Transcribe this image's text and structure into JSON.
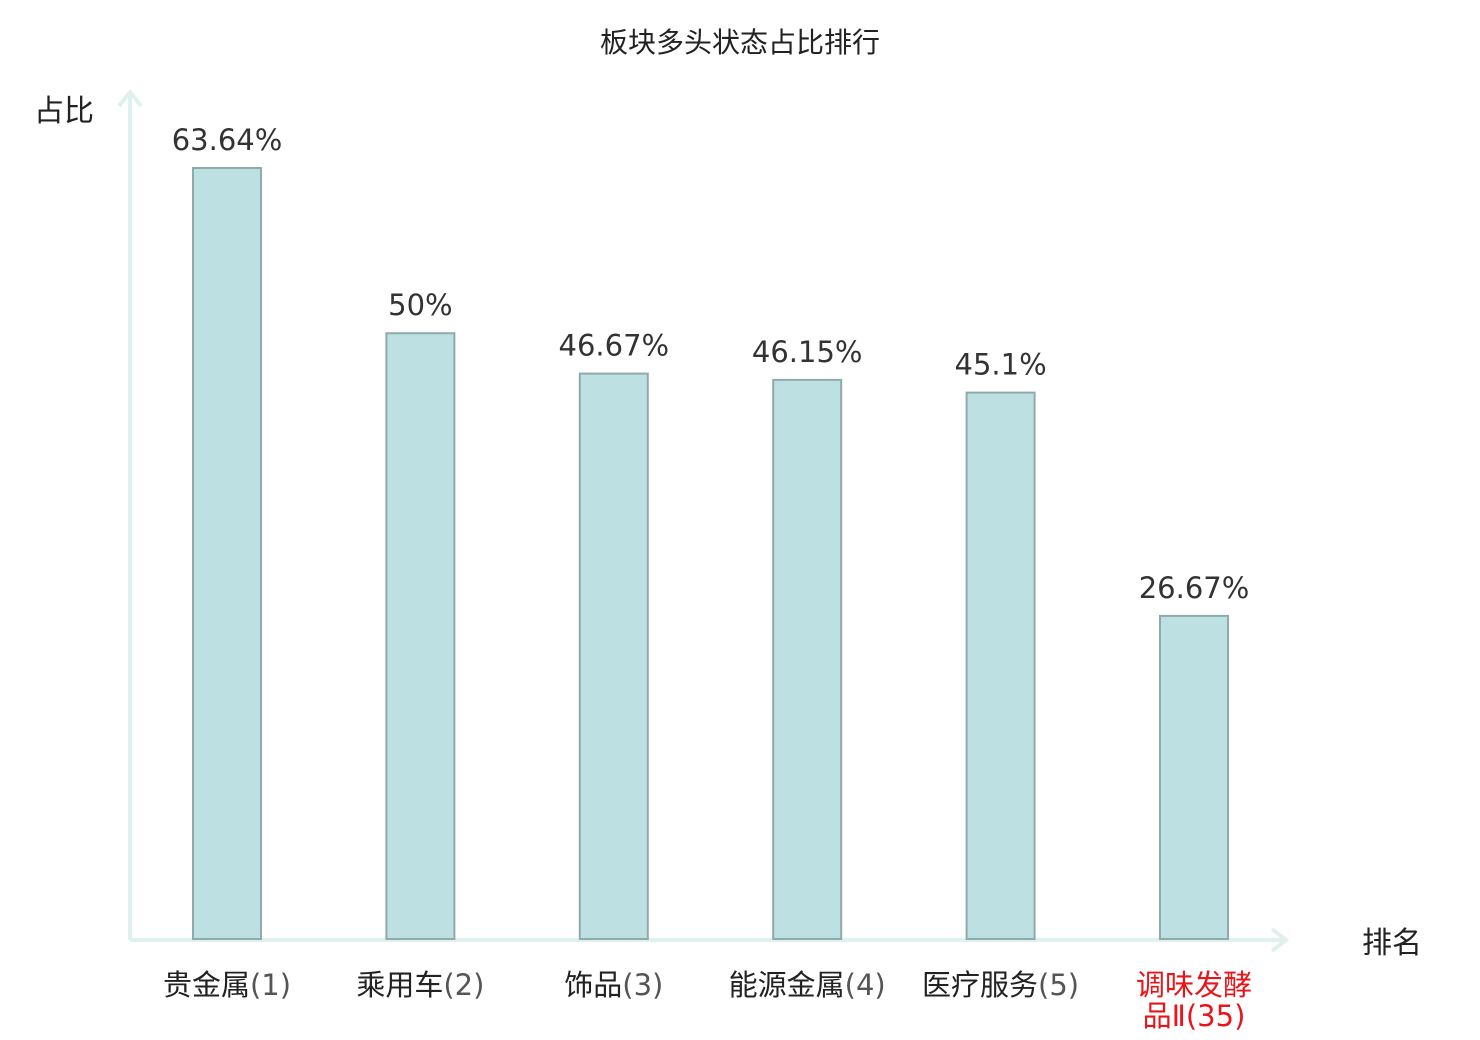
{
  "chart_data": {
    "type": "bar",
    "title": "板块多头状态占比排行",
    "ylabel": "占比",
    "xlabel": "排名",
    "ylim": [
      0,
      70
    ],
    "grid": false,
    "categories": [
      {
        "name": "贵金属",
        "rank": "(1)",
        "highlight": false
      },
      {
        "name": "乘用车",
        "rank": "(2)",
        "highlight": false
      },
      {
        "name": "饰品",
        "rank": "(3)",
        "highlight": false
      },
      {
        "name": "能源金属",
        "rank": "(4)",
        "highlight": false
      },
      {
        "name": "医疗服务",
        "rank": "(5)",
        "highlight": false
      },
      {
        "name": "调味发酵品Ⅱ",
        "rank": "(35)",
        "highlight": true
      }
    ],
    "values": [
      63.64,
      50,
      46.67,
      46.15,
      45.1,
      26.67
    ],
    "value_labels": [
      "63.64%",
      "50%",
      "46.67%",
      "46.15%",
      "45.1%",
      "26.67%"
    ],
    "colors": {
      "bar_fill": "#bde0e2",
      "bar_stroke": "#8faaa9",
      "axis": "#dff1ee",
      "highlight_text": "#e8161b",
      "text": "#222222",
      "rank_text": "#555555"
    }
  }
}
